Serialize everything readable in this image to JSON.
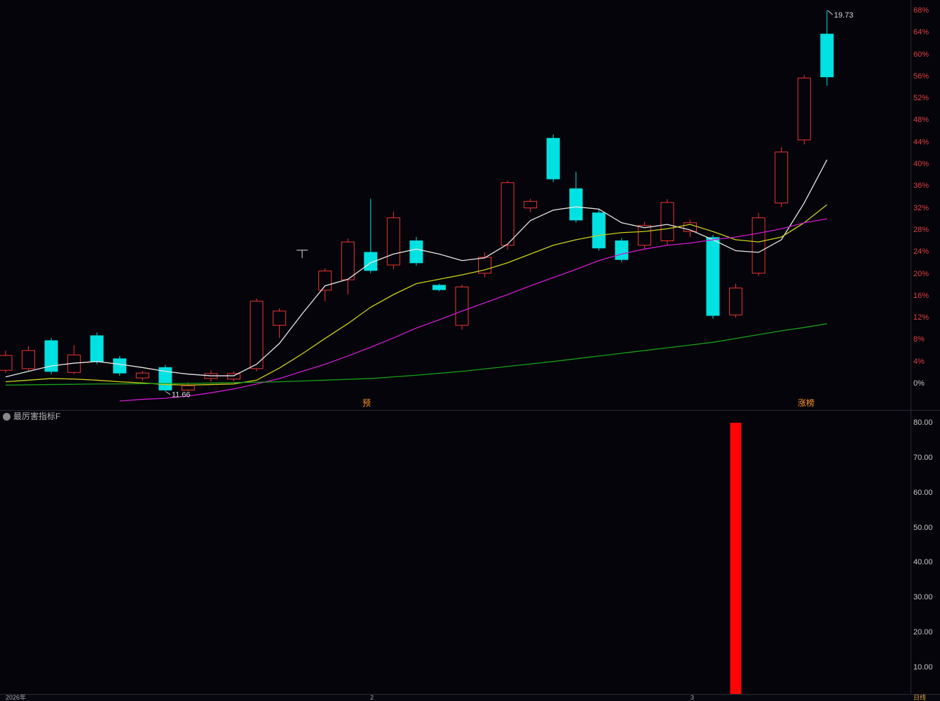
{
  "colors": {
    "bg": "#04040a",
    "up": "#ef3434",
    "down": "#00e1e1",
    "ma_white": "#e8e8e8",
    "ma_yellow": "#cfcf1b",
    "ma_magenta": "#cf1bcf",
    "ma_green": "#18a018",
    "axis_red": "#e04040",
    "axis_gray": "#c8c8c8",
    "bar_red": "#fb0505",
    "marker_orange": "#ff9126",
    "period_orange": "#dfa33b",
    "annotation_text": "#d8d8d8",
    "mark_gray": "#9a9a9a"
  },
  "main_chart": {
    "y_axis_labels": [
      {
        "value": 68,
        "label": "68%"
      },
      {
        "value": 64,
        "label": "64%"
      },
      {
        "value": 60,
        "label": "60%"
      },
      {
        "value": 56,
        "label": "56%"
      },
      {
        "value": 52,
        "label": "52%"
      },
      {
        "value": 48,
        "label": "48%"
      },
      {
        "value": 44,
        "label": "44%"
      },
      {
        "value": 40,
        "label": "40%"
      },
      {
        "value": 36,
        "label": "36%"
      },
      {
        "value": 32,
        "label": "32%"
      },
      {
        "value": 28,
        "label": "28%"
      },
      {
        "value": 24,
        "label": "24%"
      },
      {
        "value": 20,
        "label": "20%"
      },
      {
        "value": 16,
        "label": "16%"
      },
      {
        "value": 12,
        "label": "12%"
      },
      {
        "value": 8,
        "label": "8%"
      },
      {
        "value": 4,
        "label": "4%"
      },
      {
        "value": 0,
        "label": "0%"
      }
    ],
    "annotations": {
      "high": "19.73",
      "low": "11.66",
      "event_left": "预",
      "event_right": "涨榜"
    }
  },
  "indicator_panel": {
    "title": "最厉害指标F",
    "y_axis_labels": [
      {
        "value": 80,
        "label": "80.00"
      },
      {
        "value": 70,
        "label": "70.00"
      },
      {
        "value": 60,
        "label": "60.00"
      },
      {
        "value": 50,
        "label": "50.00"
      },
      {
        "value": 40,
        "label": "40.00"
      },
      {
        "value": 30,
        "label": "30.00"
      },
      {
        "value": 20,
        "label": "20.00"
      },
      {
        "value": 10,
        "label": "10.00"
      }
    ]
  },
  "status_bar": {
    "year": "2026年",
    "month_feb": "2",
    "month_mar": "3",
    "period": "日线"
  },
  "chart_data": [
    {
      "type": "candlestick",
      "panel": "main",
      "unit": "percent-change",
      "ylim": [
        -4,
        70
      ],
      "legend_position": "none",
      "grid": false,
      "candles": [
        {
          "o": 2.4,
          "h": 6.0,
          "l": 1.9,
          "c": 5.1,
          "dir": "up"
        },
        {
          "o": 2.7,
          "h": 6.8,
          "l": 2.2,
          "c": 6.0,
          "dir": "up"
        },
        {
          "o": 7.8,
          "h": 8.3,
          "l": 1.7,
          "c": 2.2,
          "dir": "down"
        },
        {
          "o": 2.0,
          "h": 7.0,
          "l": 1.7,
          "c": 5.2,
          "dir": "up"
        },
        {
          "o": 8.7,
          "h": 9.3,
          "l": 3.5,
          "c": 4.0,
          "dir": "down"
        },
        {
          "o": 4.5,
          "h": 5.0,
          "l": 1.4,
          "c": 1.9,
          "dir": "down"
        },
        {
          "o": 1.0,
          "h": 2.3,
          "l": 0.5,
          "c": 1.9,
          "dir": "up"
        },
        {
          "o": 2.9,
          "h": 3.4,
          "l": -1.5,
          "c": -1.2,
          "dir": "down"
        },
        {
          "o": -1.2,
          "h": 0.2,
          "l": -1.4,
          "c": -0.4,
          "dir": "up"
        },
        {
          "o": 0.9,
          "h": 2.4,
          "l": 0.3,
          "c": 1.8,
          "dir": "up"
        },
        {
          "o": 0.8,
          "h": 2.2,
          "l": 0.4,
          "c": 1.8,
          "dir": "up"
        },
        {
          "o": 2.7,
          "h": 15.5,
          "l": 2.2,
          "c": 15.0,
          "dir": "up"
        },
        {
          "o": 10.6,
          "h": 13.7,
          "l": 8.3,
          "c": 13.2,
          "dir": "up"
        },
        {
          "dir": "mark",
          "at": 24.3
        },
        {
          "o": 17.0,
          "h": 21.0,
          "l": 15.0,
          "c": 20.5,
          "dir": "up"
        },
        {
          "o": 18.9,
          "h": 26.4,
          "l": 16.2,
          "c": 25.8,
          "dir": "up"
        },
        {
          "o": 23.9,
          "h": 33.7,
          "l": 20.1,
          "c": 20.6,
          "dir": "down"
        },
        {
          "o": 21.6,
          "h": 31.3,
          "l": 20.8,
          "c": 30.2,
          "dir": "up"
        },
        {
          "o": 26.0,
          "h": 26.7,
          "l": 21.5,
          "c": 22.0,
          "dir": "down"
        },
        {
          "o": 17.9,
          "h": 18.2,
          "l": 16.8,
          "c": 17.1,
          "dir": "down"
        },
        {
          "o": 10.6,
          "h": 18.0,
          "l": 9.8,
          "c": 17.6,
          "dir": "up"
        },
        {
          "o": 20.1,
          "h": 23.9,
          "l": 19.4,
          "c": 23.0,
          "dir": "up"
        },
        {
          "o": 25.2,
          "h": 37.0,
          "l": 24.4,
          "c": 36.6,
          "dir": "up"
        },
        {
          "o": 32.0,
          "h": 33.7,
          "l": 31.2,
          "c": 33.2,
          "dir": "up"
        },
        {
          "o": 44.7,
          "h": 45.4,
          "l": 36.7,
          "c": 37.3,
          "dir": "down"
        },
        {
          "o": 35.5,
          "h": 38.6,
          "l": 29.3,
          "c": 29.8,
          "dir": "down"
        },
        {
          "o": 31.1,
          "h": 31.8,
          "l": 24.2,
          "c": 24.7,
          "dir": "down"
        },
        {
          "o": 26.0,
          "h": 26.5,
          "l": 22.1,
          "c": 22.6,
          "dir": "down"
        },
        {
          "o": 25.2,
          "h": 29.5,
          "l": 24.6,
          "c": 28.8,
          "dir": "up"
        },
        {
          "o": 26.0,
          "h": 33.6,
          "l": 25.2,
          "c": 33.0,
          "dir": "up"
        },
        {
          "o": 27.7,
          "h": 29.8,
          "l": 26.7,
          "c": 29.3,
          "dir": "up"
        },
        {
          "o": 26.6,
          "h": 27.1,
          "l": 11.8,
          "c": 12.4,
          "dir": "down"
        },
        {
          "o": 12.5,
          "h": 18.2,
          "l": 12.0,
          "c": 17.4,
          "dir": "up"
        },
        {
          "o": 20.1,
          "h": 31.1,
          "l": 19.6,
          "c": 30.2,
          "dir": "up"
        },
        {
          "o": 32.9,
          "h": 43.1,
          "l": 32.2,
          "c": 42.2,
          "dir": "up"
        },
        {
          "o": 44.4,
          "h": 56.2,
          "l": 43.6,
          "c": 55.7,
          "dir": "up"
        },
        {
          "o": 63.7,
          "h": 68.0,
          "l": 54.3,
          "c": 55.9,
          "dir": "down"
        }
      ],
      "series": [
        {
          "name": "MA-short-white",
          "color_key": "ma_white",
          "values": [
            1.2,
            2.2,
            3.2,
            3.7,
            4.0,
            3.5,
            2.9,
            2.2,
            1.7,
            1.4,
            1.4,
            3.5,
            7.3,
            12.7,
            17.8,
            19.0,
            22.0,
            23.6,
            24.5,
            23.6,
            22.4,
            22.9,
            25.4,
            29.7,
            31.6,
            32.2,
            31.8,
            29.3,
            28.4,
            29.0,
            28.0,
            26.2,
            24.2,
            23.9,
            26.2,
            32.9,
            40.8
          ]
        },
        {
          "name": "MA-mid-yellow",
          "color_key": "ma_yellow",
          "values": [
            0.3,
            0.6,
            0.9,
            0.8,
            0.6,
            0.3,
            0.1,
            -0.2,
            -0.3,
            -0.2,
            -0.1,
            0.6,
            2.8,
            5.4,
            8.2,
            10.9,
            13.9,
            16.2,
            18.2,
            19.0,
            19.8,
            20.7,
            22.0,
            23.6,
            25.2,
            26.2,
            27.0,
            27.5,
            27.7,
            28.2,
            29.0,
            27.7,
            26.2,
            25.8,
            26.7,
            29.3,
            32.6
          ]
        },
        {
          "name": "MA-long-magenta",
          "color_key": "ma_magenta",
          "values": [
            null,
            null,
            null,
            null,
            null,
            -3.2,
            -2.9,
            -2.7,
            -2.3,
            -1.7,
            -1.0,
            -0.1,
            0.9,
            2.2,
            3.5,
            5.0,
            6.6,
            8.3,
            10.1,
            11.6,
            13.2,
            14.7,
            16.2,
            17.8,
            19.3,
            20.8,
            22.4,
            23.6,
            24.5,
            25.2,
            25.6,
            26.2,
            26.7,
            27.4,
            28.2,
            29.3,
            30.0
          ]
        },
        {
          "name": "MA-longest-green",
          "color_key": "ma_green",
          "values": [
            -0.3,
            -0.25,
            -0.2,
            -0.15,
            -0.1,
            -0.08,
            -0.05,
            -0.02,
            0.0,
            0.07,
            0.15,
            0.22,
            0.3,
            0.45,
            0.6,
            0.75,
            0.9,
            1.2,
            1.5,
            1.85,
            2.2,
            2.65,
            3.1,
            3.55,
            4.0,
            4.5,
            5.0,
            5.5,
            6.0,
            6.5,
            7.0,
            7.5,
            8.2,
            8.9,
            9.6,
            10.2,
            10.9
          ]
        }
      ],
      "annotations": [
        {
          "index": 36,
          "type": "high",
          "text": "19.73"
        },
        {
          "index": 7,
          "type": "low",
          "text": "11.66"
        }
      ]
    },
    {
      "type": "bar",
      "panel": "indicator",
      "ylim": [
        0,
        80
      ],
      "y_ticks": [
        80,
        70,
        60,
        50,
        40,
        30,
        20,
        10
      ],
      "bars": [
        {
          "index": 32,
          "value": 80
        }
      ]
    }
  ]
}
